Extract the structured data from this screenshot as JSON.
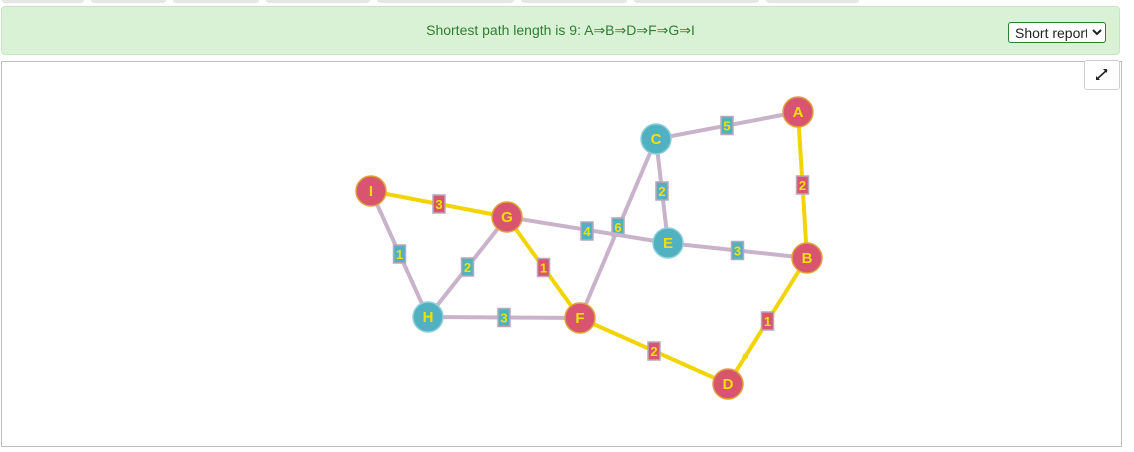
{
  "banner": {
    "text": "Shortest path length is 9: A⇒B⇒D⇒F⇒G⇒I",
    "report_options": [
      "Short report"
    ],
    "selected_report": "Short report"
  },
  "toolbar": {
    "expand_icon": "expand-arrows-icon"
  },
  "colors": {
    "path_node": "#d9546f",
    "other_node": "#52b1c1",
    "path_edge": "#f2d400",
    "other_edge": "#c9b3cb",
    "label_text": "#f2e000",
    "banner_bg": "#d9f2d6",
    "banner_text": "#2f7d32"
  },
  "graph": {
    "nodes": [
      {
        "id": "A",
        "on_path": true
      },
      {
        "id": "B",
        "on_path": true
      },
      {
        "id": "C",
        "on_path": false
      },
      {
        "id": "D",
        "on_path": true
      },
      {
        "id": "E",
        "on_path": false
      },
      {
        "id": "F",
        "on_path": true
      },
      {
        "id": "G",
        "on_path": true
      },
      {
        "id": "H",
        "on_path": false
      },
      {
        "id": "I",
        "on_path": true
      }
    ],
    "edges": [
      {
        "from": "C",
        "to": "A",
        "weight": "5",
        "on_path": false
      },
      {
        "from": "A",
        "to": "B",
        "weight": "2",
        "on_path": true
      },
      {
        "from": "C",
        "to": "E",
        "weight": "2",
        "on_path": false
      },
      {
        "from": "C",
        "to": "F",
        "weight": "6",
        "on_path": false
      },
      {
        "from": "E",
        "to": "B",
        "weight": "3",
        "on_path": false
      },
      {
        "from": "G",
        "to": "E",
        "weight": "4",
        "on_path": false
      },
      {
        "from": "I",
        "to": "G",
        "weight": "3",
        "on_path": true
      },
      {
        "from": "I",
        "to": "H",
        "weight": "1",
        "on_path": false
      },
      {
        "from": "H",
        "to": "G",
        "weight": "2",
        "on_path": false
      },
      {
        "from": "G",
        "to": "F",
        "weight": "1",
        "on_path": true
      },
      {
        "from": "H",
        "to": "F",
        "weight": "3",
        "on_path": false
      },
      {
        "from": "F",
        "to": "D",
        "weight": "2",
        "on_path": true
      },
      {
        "from": "B",
        "to": "D",
        "weight": "1",
        "on_path": true
      }
    ]
  }
}
